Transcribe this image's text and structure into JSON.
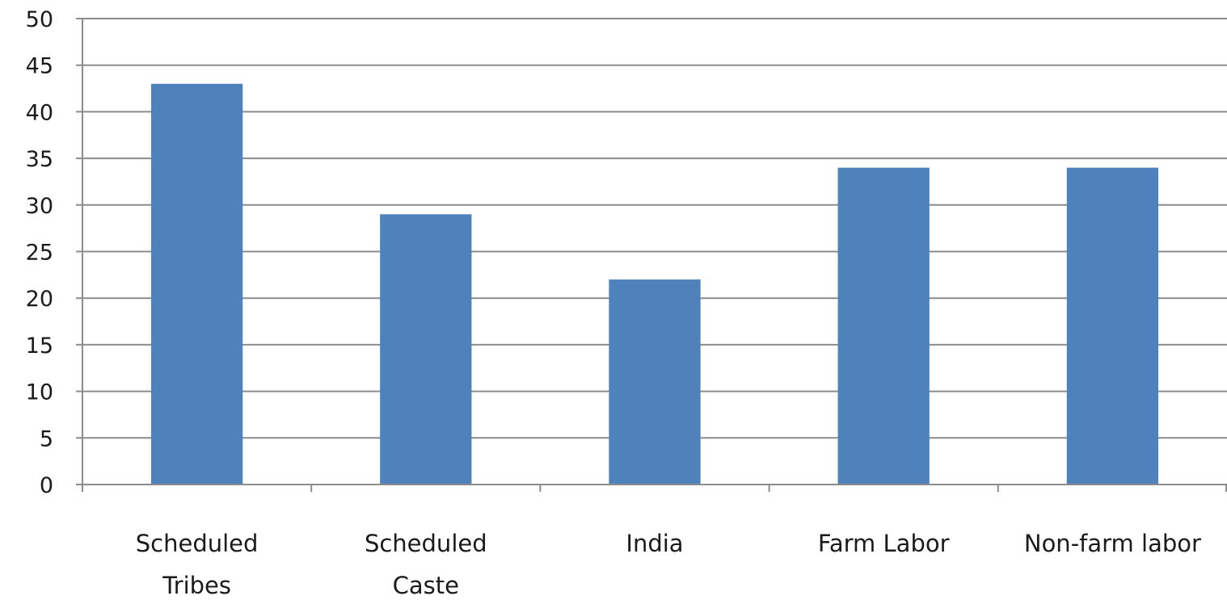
{
  "chart_data": {
    "type": "bar",
    "title": "",
    "xlabel": "",
    "ylabel": "",
    "categories": [
      [
        "Scheduled",
        "Tribes"
      ],
      [
        "Scheduled",
        "Caste"
      ],
      [
        "India"
      ],
      [
        "Farm Labor"
      ],
      [
        "Non-farm labor"
      ]
    ],
    "values": [
      43,
      29,
      22,
      34,
      34
    ],
    "ylim": [
      0,
      50
    ],
    "yticks": [
      "0",
      "5",
      "10",
      "15",
      "20",
      "25",
      "30",
      "35",
      "40",
      "45",
      "50"
    ],
    "grid": true,
    "legend": "none",
    "bar_color": "#4f81bd"
  }
}
